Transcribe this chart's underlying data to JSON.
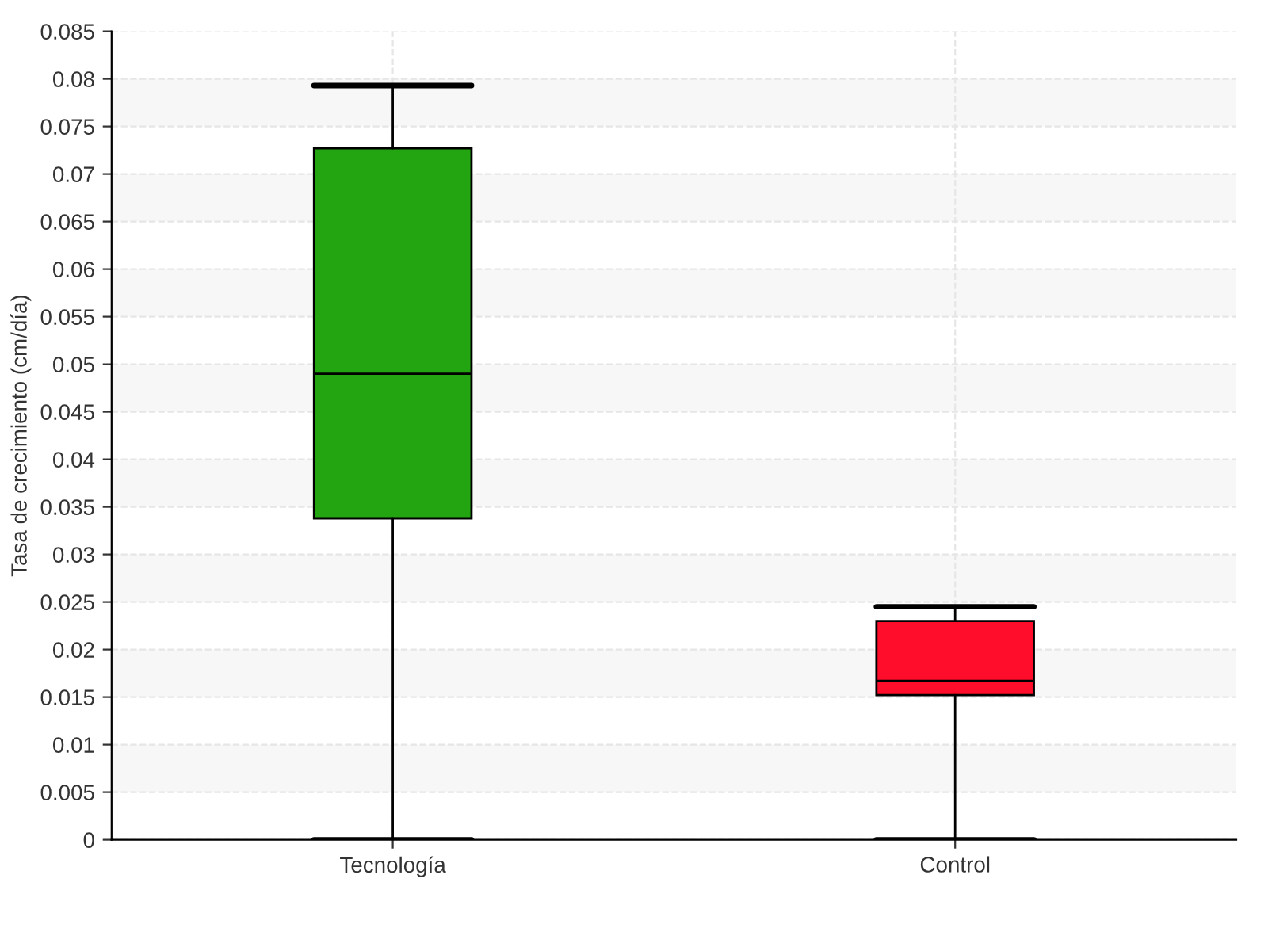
{
  "chart_data": {
    "type": "box",
    "ylabel": "Tasa de crecimiento (cm/día)",
    "categories": [
      "Tecnología",
      "Control"
    ],
    "boxes": [
      {
        "low": 0,
        "q1": 0.0338,
        "median": 0.049,
        "q3": 0.0727,
        "high": 0.0793
      },
      {
        "low": 0,
        "q1": 0.0152,
        "median": 0.0167,
        "q3": 0.023,
        "high": 0.0245
      }
    ],
    "colors": [
      "#22a511",
      "#ff0d2a"
    ],
    "ylim": [
      0,
      0.085
    ],
    "yticks": [
      0,
      0.005,
      0.01,
      0.015,
      0.02,
      0.025,
      0.03,
      0.035,
      0.04,
      0.045,
      0.05,
      0.055,
      0.06,
      0.065,
      0.07,
      0.075,
      0.08,
      0.085
    ],
    "grid": true
  }
}
